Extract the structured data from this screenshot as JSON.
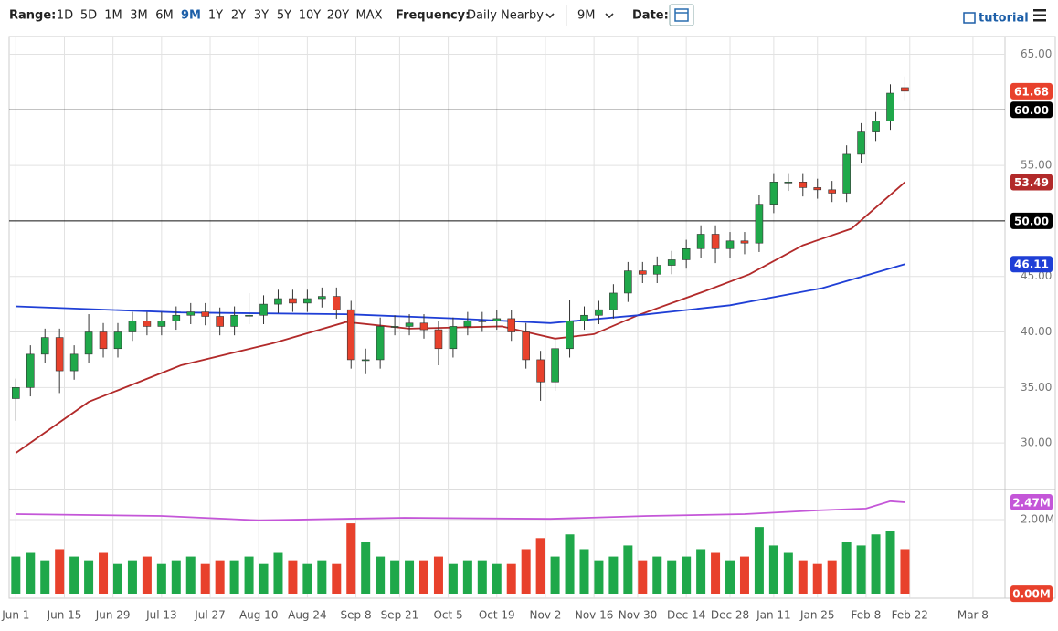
{
  "toolbar": {
    "range_label": "Range:",
    "ranges": [
      "1D",
      "5D",
      "1M",
      "3M",
      "6M",
      "9M",
      "1Y",
      "2Y",
      "3Y",
      "5Y",
      "10Y",
      "20Y",
      "MAX"
    ],
    "active_range": "9M",
    "frequency_label": "Frequency:",
    "frequency": "Daily Nearby",
    "period": "9M",
    "date_label": "Date:",
    "tutorial": "tutorial"
  },
  "chart_data": [
    {
      "type": "candlestick",
      "up_color": "#1fa84a",
      "down_color": "#e8412c",
      "grid": true,
      "xlim": [
        -1,
        203.6
      ],
      "ylim": [
        25.9,
        66.6
      ],
      "xticks": [
        {
          "value": 0,
          "label": "Jun 1"
        },
        {
          "value": 10,
          "label": "Jun 15"
        },
        {
          "value": 20,
          "label": "Jun 29"
        },
        {
          "value": 30,
          "label": "Jul 13"
        },
        {
          "value": 40,
          "label": "Jul 27"
        },
        {
          "value": 50,
          "label": "Aug 10"
        },
        {
          "value": 60,
          "label": "Aug 24"
        },
        {
          "value": 70,
          "label": "Sep 8"
        },
        {
          "value": 79,
          "label": "Sep 21"
        },
        {
          "value": 89,
          "label": "Oct 5"
        },
        {
          "value": 99,
          "label": "Oct 19"
        },
        {
          "value": 109,
          "label": "Nov 2"
        },
        {
          "value": 119,
          "label": "Nov 16"
        },
        {
          "value": 128,
          "label": "Nov 30"
        },
        {
          "value": 138,
          "label": "Dec 14"
        },
        {
          "value": 147,
          "label": "Dec 28"
        },
        {
          "value": 156,
          "label": "Jan 11"
        },
        {
          "value": 165,
          "label": "Jan 25"
        },
        {
          "value": 175,
          "label": "Feb 8"
        },
        {
          "value": 184,
          "label": "Feb 22"
        },
        {
          "value": 197,
          "label": "Mar 8"
        }
      ],
      "yticks": [
        {
          "value": 30,
          "label": "30.00"
        },
        {
          "value": 35,
          "label": "35.00"
        },
        {
          "value": 40,
          "label": "40.00"
        },
        {
          "value": 45,
          "label": "45.00"
        },
        {
          "value": 55,
          "label": "55.00"
        },
        {
          "value": 65,
          "label": "65.00"
        }
      ],
      "hlines": [
        {
          "value": 60,
          "label": "60.00"
        },
        {
          "value": 50,
          "label": "50.00"
        }
      ],
      "x": [
        0,
        3,
        6,
        9,
        12,
        15,
        18,
        21,
        24,
        27,
        30,
        33,
        36,
        39,
        42,
        45,
        48,
        51,
        54,
        57,
        60,
        63,
        66,
        69,
        72,
        75,
        78,
        81,
        84,
        87,
        90,
        93,
        96,
        99,
        102,
        105,
        108,
        111,
        114,
        117,
        120,
        123,
        126,
        129,
        132,
        135,
        138,
        141,
        144,
        147,
        150,
        153,
        156,
        159,
        162,
        165,
        168,
        171,
        174,
        177,
        180,
        183
      ],
      "open": [
        34.0,
        35.0,
        38.0,
        39.5,
        36.5,
        38.0,
        40.0,
        38.5,
        40.0,
        41.0,
        40.5,
        41.0,
        41.5,
        41.8,
        41.4,
        40.5,
        41.5,
        41.5,
        42.5,
        43.0,
        42.6,
        43.0,
        43.2,
        42.0,
        37.5,
        37.5,
        40.5,
        40.5,
        40.8,
        40.2,
        38.5,
        40.5,
        41.0,
        41.0,
        41.2,
        40.0,
        37.5,
        35.5,
        38.5,
        41.0,
        41.5,
        42.0,
        43.5,
        45.5,
        45.2,
        46.0,
        46.5,
        47.5,
        48.8,
        47.5,
        48.2,
        48.0,
        51.5,
        53.5,
        53.5,
        53.0,
        52.8,
        52.5,
        56.0,
        58.0,
        59.0,
        62.0
      ],
      "high": [
        35.8,
        38.8,
        40.3,
        40.3,
        38.8,
        41.6,
        40.8,
        40.8,
        41.8,
        41.8,
        41.8,
        42.3,
        42.6,
        42.6,
        42.2,
        42.3,
        43.5,
        43.3,
        43.8,
        43.8,
        43.8,
        44.0,
        44.0,
        42.8,
        38.5,
        41.3,
        41.5,
        41.6,
        41.6,
        41.0,
        41.3,
        41.8,
        41.8,
        42.0,
        42.0,
        40.8,
        38.3,
        39.3,
        42.9,
        42.3,
        42.8,
        44.3,
        46.3,
        46.3,
        46.8,
        47.3,
        48.3,
        49.6,
        49.6,
        49.0,
        49.0,
        52.3,
        54.3,
        54.3,
        54.3,
        53.8,
        53.6,
        56.8,
        58.8,
        59.8,
        62.3,
        63.0
      ],
      "low": [
        32.0,
        34.2,
        37.2,
        34.5,
        35.7,
        37.2,
        37.7,
        37.7,
        39.2,
        39.7,
        39.7,
        40.2,
        40.7,
        40.6,
        39.7,
        39.7,
        40.7,
        40.7,
        41.7,
        41.8,
        41.8,
        42.2,
        41.2,
        36.7,
        36.2,
        36.7,
        39.7,
        39.7,
        39.4,
        37.0,
        37.7,
        39.7,
        40.0,
        40.2,
        39.2,
        36.7,
        33.8,
        34.7,
        37.7,
        40.2,
        40.7,
        41.2,
        42.7,
        44.4,
        44.4,
        45.2,
        45.7,
        46.7,
        46.2,
        46.7,
        47.0,
        47.2,
        50.7,
        52.7,
        52.2,
        52.0,
        51.7,
        51.7,
        55.2,
        57.2,
        58.2,
        60.8
      ],
      "close": [
        35.0,
        38.0,
        39.5,
        36.5,
        38.0,
        40.0,
        38.5,
        40.0,
        41.0,
        40.5,
        41.0,
        41.5,
        41.8,
        41.4,
        40.5,
        41.5,
        41.5,
        42.5,
        43.0,
        42.6,
        43.0,
        43.2,
        42.0,
        37.5,
        37.5,
        40.5,
        40.5,
        40.8,
        40.2,
        38.5,
        40.5,
        41.0,
        41.0,
        41.2,
        40.0,
        37.5,
        35.5,
        38.5,
        41.0,
        41.5,
        42.0,
        43.5,
        45.5,
        45.2,
        46.0,
        46.5,
        47.5,
        48.8,
        47.5,
        48.2,
        48.0,
        51.5,
        53.5,
        53.5,
        53.0,
        52.8,
        52.5,
        56.0,
        58.0,
        59.0,
        61.5,
        61.68
      ],
      "overlays": [
        {
          "color": "#b22a2a",
          "x": [
            0,
            15,
            34,
            53,
            68,
            81,
            100,
            111,
            119,
            128,
            142,
            151,
            162,
            172,
            183
          ],
          "values": [
            29.1,
            33.7,
            37.0,
            39.0,
            40.9,
            40.3,
            40.5,
            39.4,
            39.8,
            41.5,
            43.7,
            45.2,
            47.8,
            49.3,
            53.49
          ]
        },
        {
          "color": "#1f3fd6",
          "x": [
            0,
            34,
            68,
            91,
            110,
            128,
            147,
            166,
            183
          ],
          "values": [
            42.3,
            41.75,
            41.6,
            41.2,
            40.8,
            41.5,
            42.4,
            43.95,
            46.11
          ]
        }
      ]
    },
    {
      "type": "bar",
      "xlim": [
        -1,
        203.6
      ],
      "ylim": [
        -0.12,
        2.79
      ],
      "yticks": [
        {
          "value": 2,
          "label": "2.00M"
        },
        {
          "value": 0,
          "label": "0.00M"
        }
      ],
      "x": [
        0,
        3,
        6,
        9,
        12,
        15,
        18,
        21,
        24,
        27,
        30,
        33,
        36,
        39,
        42,
        45,
        48,
        51,
        54,
        57,
        60,
        63,
        66,
        69,
        72,
        75,
        78,
        81,
        84,
        87,
        90,
        93,
        96,
        99,
        102,
        105,
        108,
        111,
        114,
        117,
        120,
        123,
        126,
        129,
        132,
        135,
        138,
        141,
        144,
        147,
        150,
        153,
        156,
        159,
        162,
        165,
        168,
        171,
        174,
        177,
        180,
        183
      ],
      "values": [
        1.0,
        1.1,
        0.9,
        1.2,
        1.0,
        0.9,
        1.1,
        0.8,
        0.9,
        1.0,
        0.8,
        0.9,
        1.0,
        0.8,
        0.9,
        0.9,
        1.0,
        0.8,
        1.1,
        0.9,
        0.8,
        0.9,
        0.8,
        1.9,
        1.4,
        1.0,
        0.9,
        0.9,
        0.9,
        1.0,
        0.8,
        0.9,
        0.9,
        0.8,
        0.8,
        1.2,
        1.5,
        1.0,
        1.6,
        1.2,
        0.9,
        1.0,
        1.3,
        0.9,
        1.0,
        0.9,
        1.0,
        1.2,
        1.1,
        0.9,
        1.0,
        1.8,
        1.3,
        1.1,
        0.9,
        0.8,
        0.9,
        1.4,
        1.3,
        1.6,
        1.7,
        1.2
      ],
      "overlays": [
        {
          "color": "#c456d8",
          "x": [
            0,
            30,
            50,
            80,
            110,
            130,
            150,
            165,
            175,
            180,
            183
          ],
          "values": [
            2.15,
            2.1,
            1.98,
            2.05,
            2.02,
            2.1,
            2.15,
            2.25,
            2.3,
            2.5,
            2.47
          ],
          "value_labels": [
            null,
            null,
            null,
            null,
            null,
            null,
            null,
            null,
            null,
            null,
            "2.47M"
          ]
        }
      ]
    }
  ]
}
